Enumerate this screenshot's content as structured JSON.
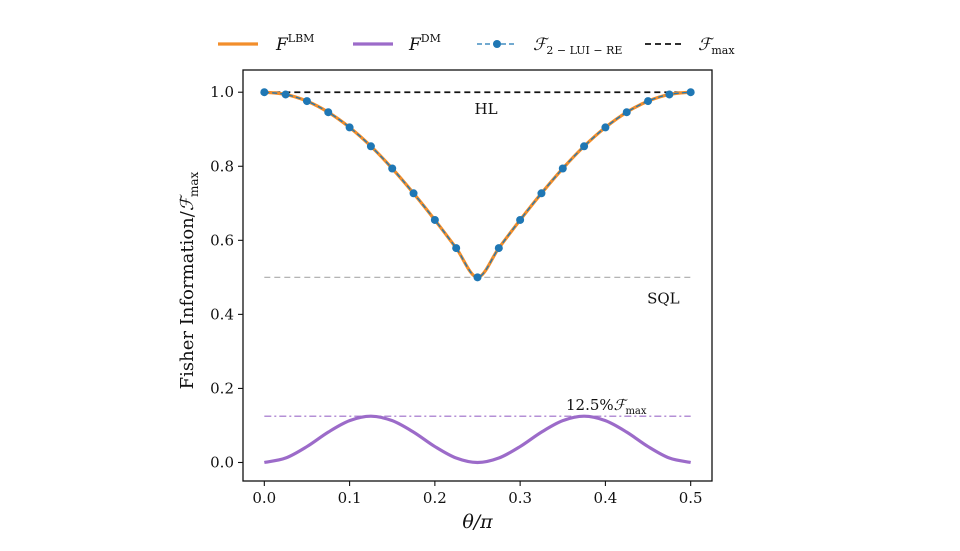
{
  "chart_data": {
    "type": "line",
    "xlabel": "θ/π",
    "ylabel": "Fisher Information/ℱ",
    "ylabel_sub": "max",
    "xlim": [
      -0.025,
      0.525
    ],
    "ylim": [
      -0.05,
      1.06
    ],
    "xticks": [
      0.0,
      0.1,
      0.2,
      0.3,
      0.4,
      0.5
    ],
    "xtick_labels": [
      "0.0",
      "0.1",
      "0.2",
      "0.3",
      "0.4",
      "0.5"
    ],
    "yticks": [
      0.0,
      0.2,
      0.4,
      0.6,
      0.8,
      1.0
    ],
    "ytick_labels": [
      "0.0",
      "0.2",
      "0.4",
      "0.6",
      "0.8",
      "1.0"
    ],
    "legend": [
      {
        "name": "F",
        "sup": "LBM",
        "sub": "",
        "color": "#f28e2b",
        "style": "solid"
      },
      {
        "name": "F",
        "sup": "DM",
        "sub": "",
        "color": "#9c6bc9",
        "style": "solid"
      },
      {
        "name": "ℱ",
        "sup": "",
        "sub": "2 − LUI − RE",
        "color": "#1f77b4",
        "style": "dashed-marker"
      },
      {
        "name": "ℱ",
        "sup": "",
        "sub": "max",
        "color": "#111111",
        "style": "dashed"
      }
    ],
    "series": [
      {
        "name": "F^LBM",
        "color": "#f28e2b",
        "x": [
          0.0,
          0.025,
          0.05,
          0.075,
          0.1,
          0.125,
          0.15,
          0.175,
          0.2,
          0.225,
          0.25,
          0.275,
          0.3,
          0.325,
          0.35,
          0.375,
          0.4,
          0.425,
          0.45,
          0.475,
          0.5
        ],
        "y": [
          1.0,
          0.994,
          0.976,
          0.946,
          0.905,
          0.854,
          0.794,
          0.727,
          0.655,
          0.579,
          0.5,
          0.579,
          0.655,
          0.727,
          0.794,
          0.854,
          0.905,
          0.946,
          0.976,
          0.994,
          1.0
        ]
      },
      {
        "name": "F^DM",
        "color": "#9c6bc9",
        "x": [
          0.0,
          0.025,
          0.05,
          0.075,
          0.1,
          0.125,
          0.15,
          0.175,
          0.2,
          0.225,
          0.25,
          0.275,
          0.3,
          0.325,
          0.35,
          0.375,
          0.4,
          0.425,
          0.45,
          0.475,
          0.5
        ],
        "y": [
          0.0,
          0.012,
          0.043,
          0.082,
          0.113,
          0.125,
          0.113,
          0.082,
          0.043,
          0.012,
          0.0,
          0.012,
          0.043,
          0.082,
          0.113,
          0.125,
          0.113,
          0.082,
          0.043,
          0.012,
          0.0
        ]
      },
      {
        "name": "ℱ 2-LUI-RE",
        "color": "#1f77b4",
        "x": [
          0.0,
          0.025,
          0.05,
          0.075,
          0.1,
          0.125,
          0.15,
          0.175,
          0.2,
          0.225,
          0.25,
          0.275,
          0.3,
          0.325,
          0.35,
          0.375,
          0.4,
          0.425,
          0.45,
          0.475,
          0.5
        ],
        "y": [
          1.0,
          0.994,
          0.976,
          0.946,
          0.905,
          0.854,
          0.794,
          0.727,
          0.655,
          0.579,
          0.5,
          0.579,
          0.655,
          0.727,
          0.794,
          0.854,
          0.905,
          0.946,
          0.976,
          0.994,
          1.0
        ]
      }
    ],
    "reference_lines": [
      {
        "name": "HL",
        "y": 1.0,
        "color": "#111111",
        "style": "dashed",
        "label": "HL"
      },
      {
        "name": "SQL",
        "y": 0.5,
        "color": "#aaaaaa",
        "style": "dashed",
        "label": "SQL"
      },
      {
        "name": "12.5%",
        "y": 0.125,
        "color": "#9c6bc9",
        "style": "dashdot",
        "label": "12.5%",
        "label_sym": "ℱ",
        "label_sub": "max"
      }
    ]
  }
}
